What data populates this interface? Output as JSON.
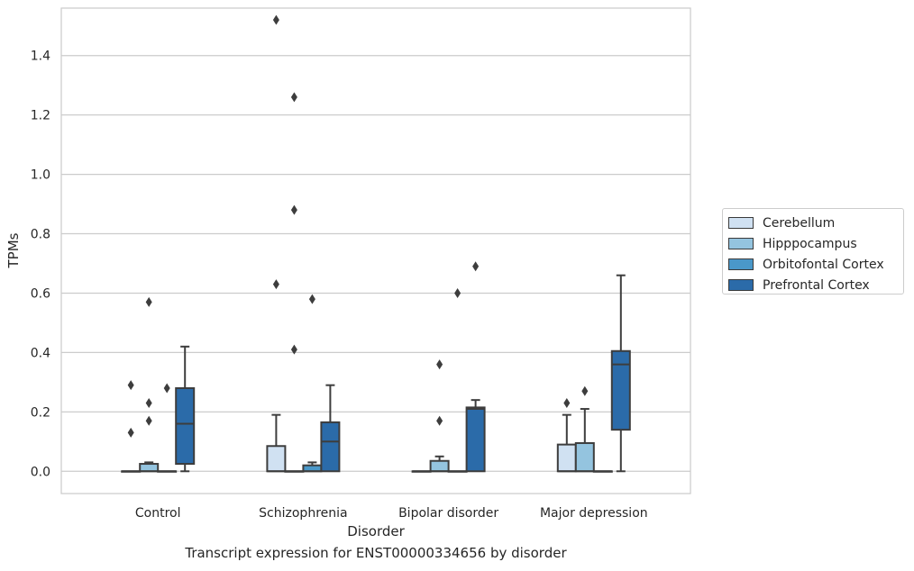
{
  "chart_data": {
    "type": "box",
    "title": "",
    "caption": "Transcript expression for ENST00000334656 by disorder",
    "xlabel": "Disorder",
    "ylabel": "TPMs",
    "ylim": [
      -0.075,
      1.56
    ],
    "yticks": [
      0.0,
      0.2,
      0.4,
      0.6,
      0.8,
      1.0,
      1.2,
      1.4
    ],
    "ytick_labels": [
      "0.0",
      "0.2",
      "0.4",
      "0.6",
      "0.8",
      "1.0",
      "1.2",
      "1.4"
    ],
    "grid": "horizontal",
    "legend_position": "right",
    "categories": [
      "Control",
      "Schizophrenia",
      "Bipolar disorder",
      "Major depression"
    ],
    "series": [
      {
        "name": "Cerebellum",
        "color": "#d0e1f2",
        "boxes": [
          {
            "q1": 0,
            "median": 0,
            "q3": 0,
            "whisker_low": 0,
            "whisker_high": 0,
            "outliers": [
              0.29,
              0.13
            ]
          },
          {
            "q1": 0,
            "median": 0,
            "q3": 0.085,
            "whisker_low": 0,
            "whisker_high": 0.19,
            "outliers": [
              1.52,
              0.63
            ]
          },
          {
            "q1": 0,
            "median": 0,
            "q3": 0,
            "whisker_low": 0,
            "whisker_high": 0,
            "outliers": []
          },
          {
            "q1": 0,
            "median": 0,
            "q3": 0.09,
            "whisker_low": 0,
            "whisker_high": 0.19,
            "outliers": [
              0.23
            ]
          }
        ]
      },
      {
        "name": "Hipppocampus",
        "color": "#94c4df",
        "boxes": [
          {
            "q1": 0,
            "median": 0,
            "q3": 0.025,
            "whisker_low": 0,
            "whisker_high": 0.03,
            "outliers": [
              0.57,
              0.23,
              0.17
            ]
          },
          {
            "q1": 0,
            "median": 0,
            "q3": 0,
            "whisker_low": 0,
            "whisker_high": 0,
            "outliers": [
              1.26,
              0.88,
              0.41
            ]
          },
          {
            "q1": 0,
            "median": 0,
            "q3": 0.035,
            "whisker_low": 0,
            "whisker_high": 0.05,
            "outliers": [
              0.36,
              0.17
            ]
          },
          {
            "q1": 0,
            "median": 0,
            "q3": 0.095,
            "whisker_low": 0,
            "whisker_high": 0.21,
            "outliers": [
              0.27
            ]
          }
        ]
      },
      {
        "name": "Orbitofontal Cortex",
        "color": "#4a98c9",
        "boxes": [
          {
            "q1": 0,
            "median": 0,
            "q3": 0,
            "whisker_low": 0,
            "whisker_high": 0,
            "outliers": [
              0.28
            ]
          },
          {
            "q1": 0,
            "median": 0,
            "q3": 0.02,
            "whisker_low": 0,
            "whisker_high": 0.03,
            "outliers": [
              0.58
            ]
          },
          {
            "q1": 0,
            "median": 0,
            "q3": 0,
            "whisker_low": 0,
            "whisker_high": 0,
            "outliers": [
              0.6
            ]
          },
          {
            "q1": 0,
            "median": 0,
            "q3": 0,
            "whisker_low": 0,
            "whisker_high": 0,
            "outliers": []
          }
        ]
      },
      {
        "name": "Prefrontal Cortex",
        "color": "#2b6ba9",
        "boxes": [
          {
            "q1": 0.025,
            "median": 0.16,
            "q3": 0.28,
            "whisker_low": 0,
            "whisker_high": 0.42,
            "outliers": []
          },
          {
            "q1": 0,
            "median": 0.1,
            "q3": 0.165,
            "whisker_low": 0,
            "whisker_high": 0.29,
            "outliers": []
          },
          {
            "q1": 0,
            "median": 0.21,
            "q3": 0.215,
            "whisker_low": 0,
            "whisker_high": 0.24,
            "outliers": [
              0.69
            ]
          },
          {
            "q1": 0.14,
            "median": 0.36,
            "q3": 0.405,
            "whisker_low": 0,
            "whisker_high": 0.66,
            "outliers": []
          }
        ]
      }
    ]
  }
}
